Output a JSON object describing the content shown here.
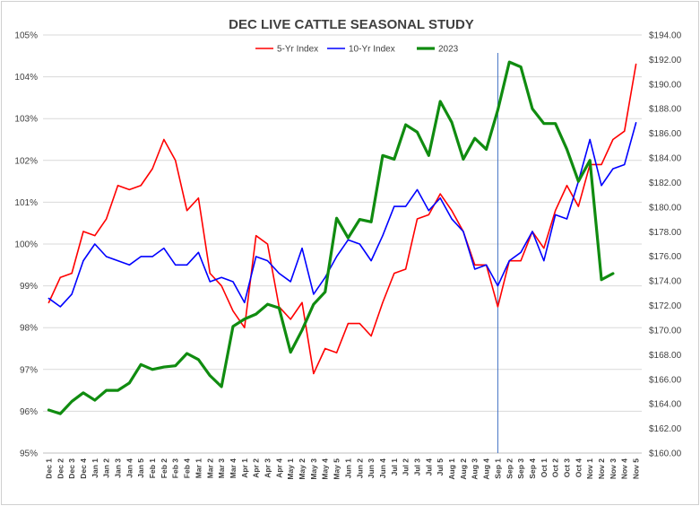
{
  "chart_data": {
    "type": "line",
    "title": "DEC LIVE CATTLE SEASONAL STUDY",
    "categories": [
      "Dec 1",
      "Dec 2",
      "Dec 3",
      "Dec 4",
      "Jan 1",
      "Jan 2",
      "Jan 3",
      "Jan 4",
      "Jan 5",
      "Feb 1",
      "Feb 2",
      "Feb 3",
      "Feb 4",
      "Mar 1",
      "Mar 2",
      "Mar 3",
      "Mar 4",
      "Apr 1",
      "Apr 2",
      "Apr 3",
      "Apr 4",
      "May 1",
      "May 2",
      "May 3",
      "May 4",
      "May 5",
      "Jun 1",
      "Jun 2",
      "Jun 3",
      "Jun 4",
      "Jul 1",
      "Jul 2",
      "Jul 3",
      "Jul 4",
      "Jul 5",
      "Aug 1",
      "Aug 2",
      "Aug 3",
      "Aug 4",
      "Sep 1",
      "Sep 2",
      "Sep 3",
      "Sep 4",
      "Oct 1",
      "Oct 2",
      "Oct 3",
      "Oct 4",
      "Nov 1",
      "Nov 2",
      "Nov 3",
      "Nov 4",
      "Nov 5"
    ],
    "y_left": {
      "ylim": [
        95,
        105
      ],
      "ticks": [
        "95%",
        "96%",
        "97%",
        "98%",
        "99%",
        "100%",
        "101%",
        "102%",
        "103%",
        "104%",
        "105%"
      ]
    },
    "y_right": {
      "ylim": [
        160,
        194
      ],
      "ticks": [
        "$160.00",
        "$162.00",
        "$164.00",
        "$166.00",
        "$168.00",
        "$170.00",
        "$172.00",
        "$174.00",
        "$176.00",
        "$178.00",
        "$180.00",
        "$182.00",
        "$184.00",
        "$186.00",
        "$188.00",
        "$190.00",
        "$192.00",
        "$194.00"
      ]
    },
    "grid": true,
    "legend_position": "top-center",
    "vertical_marker": {
      "category": "Sep 1",
      "color": "#4472c4"
    },
    "series": [
      {
        "name": "5-Yr Index",
        "axis": "left",
        "color": "#ff0000",
        "values": [
          98.6,
          99.2,
          99.3,
          100.3,
          100.2,
          100.6,
          101.4,
          101.3,
          101.4,
          101.8,
          102.5,
          102.0,
          100.8,
          101.1,
          99.3,
          99.0,
          98.4,
          98.0,
          100.2,
          100.0,
          98.5,
          98.2,
          98.6,
          96.9,
          97.5,
          97.4,
          98.1,
          98.1,
          97.8,
          98.6,
          99.3,
          99.4,
          100.6,
          100.7,
          101.2,
          100.8,
          100.3,
          99.5,
          99.5,
          98.5,
          99.6,
          99.6,
          100.3,
          99.9,
          100.8,
          101.4,
          100.9,
          101.9,
          101.9,
          102.5,
          102.7,
          104.3
        ]
      },
      {
        "name": "10-Yr Index",
        "axis": "left",
        "color": "#0000ff",
        "values": [
          98.7,
          98.5,
          98.8,
          99.6,
          100.0,
          99.7,
          99.6,
          99.5,
          99.7,
          99.7,
          99.9,
          99.5,
          99.5,
          99.8,
          99.1,
          99.2,
          99.1,
          98.6,
          99.7,
          99.6,
          99.3,
          99.1,
          99.9,
          98.8,
          99.2,
          99.7,
          100.1,
          100.0,
          99.6,
          100.2,
          100.9,
          100.9,
          101.3,
          100.8,
          101.1,
          100.6,
          100.3,
          99.4,
          99.5,
          99.0,
          99.6,
          99.8,
          100.3,
          99.6,
          100.7,
          100.6,
          101.5,
          102.5,
          101.4,
          101.8,
          101.9,
          102.9
        ]
      },
      {
        "name": "2023",
        "axis": "right",
        "color": "#108c10",
        "values": [
          163.5,
          163.2,
          164.2,
          164.9,
          164.3,
          165.1,
          165.1,
          165.7,
          167.2,
          166.8,
          167.0,
          167.1,
          168.1,
          167.6,
          166.3,
          165.4,
          170.3,
          170.9,
          171.3,
          172.1,
          171.8,
          168.2,
          170.0,
          172.1,
          173.1,
          179.1,
          177.5,
          179.0,
          178.8,
          184.2,
          183.9,
          186.7,
          186.1,
          184.2,
          188.6,
          186.9,
          183.9,
          185.6,
          184.7,
          187.9,
          191.8,
          191.4,
          188.0,
          186.8,
          186.8,
          184.7,
          182.1,
          183.8,
          174.1,
          174.6,
          null,
          null
        ]
      }
    ]
  }
}
